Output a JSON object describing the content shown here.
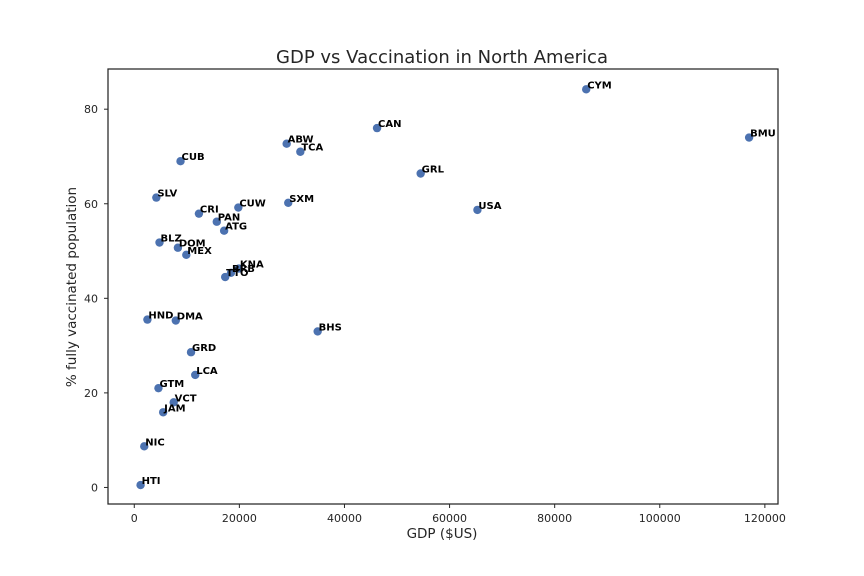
{
  "chart_data": {
    "type": "scatter",
    "title": "GDP vs Vaccination in North America",
    "xlabel": "GDP ($US)",
    "ylabel": "% fully vaccinated population",
    "xlim": [
      -5000,
      122500
    ],
    "ylim": [
      -3.5,
      88.5
    ],
    "xticks": [
      0,
      20000,
      40000,
      60000,
      80000,
      100000,
      120000
    ],
    "yticks": [
      0,
      20,
      40,
      60,
      80
    ],
    "grid": false,
    "marker_color": "#4c72b0",
    "points": [
      {
        "label": "CYM",
        "x": 86000,
        "y": 84.2
      },
      {
        "label": "BMU",
        "x": 117000,
        "y": 74.0
      },
      {
        "label": "CAN",
        "x": 46200,
        "y": 76.0
      },
      {
        "label": "ABW",
        "x": 29000,
        "y": 72.7
      },
      {
        "label": "TCA",
        "x": 31600,
        "y": 71.0
      },
      {
        "label": "GRL",
        "x": 54500,
        "y": 66.4
      },
      {
        "label": "USA",
        "x": 65300,
        "y": 58.7
      },
      {
        "label": "CUB",
        "x": 8800,
        "y": 69.0
      },
      {
        "label": "SLV",
        "x": 4200,
        "y": 61.3
      },
      {
        "label": "SXM",
        "x": 29300,
        "y": 60.2
      },
      {
        "label": "CUW",
        "x": 19800,
        "y": 59.2
      },
      {
        "label": "CRI",
        "x": 12300,
        "y": 57.9
      },
      {
        "label": "PAN",
        "x": 15700,
        "y": 56.2
      },
      {
        "label": "ATG",
        "x": 17100,
        "y": 54.3
      },
      {
        "label": "BLZ",
        "x": 4800,
        "y": 51.8
      },
      {
        "label": "DOM",
        "x": 8300,
        "y": 50.7
      },
      {
        "label": "MEX",
        "x": 9900,
        "y": 49.2
      },
      {
        "label": "KNA",
        "x": 19900,
        "y": 46.3
      },
      {
        "label": "BRB",
        "x": 18400,
        "y": 45.4
      },
      {
        "label": "TTO",
        "x": 17300,
        "y": 44.5
      },
      {
        "label": "HND",
        "x": 2500,
        "y": 35.5
      },
      {
        "label": "DMA",
        "x": 7900,
        "y": 35.3
      },
      {
        "label": "BHS",
        "x": 34900,
        "y": 33.0
      },
      {
        "label": "GRD",
        "x": 10800,
        "y": 28.6
      },
      {
        "label": "LCA",
        "x": 11600,
        "y": 23.8
      },
      {
        "label": "GTM",
        "x": 4600,
        "y": 21.0
      },
      {
        "label": "VCT",
        "x": 7500,
        "y": 18.0
      },
      {
        "label": "JAM",
        "x": 5500,
        "y": 15.9
      },
      {
        "label": "NIC",
        "x": 1900,
        "y": 8.7
      },
      {
        "label": "HTI",
        "x": 1200,
        "y": 0.5
      }
    ]
  }
}
